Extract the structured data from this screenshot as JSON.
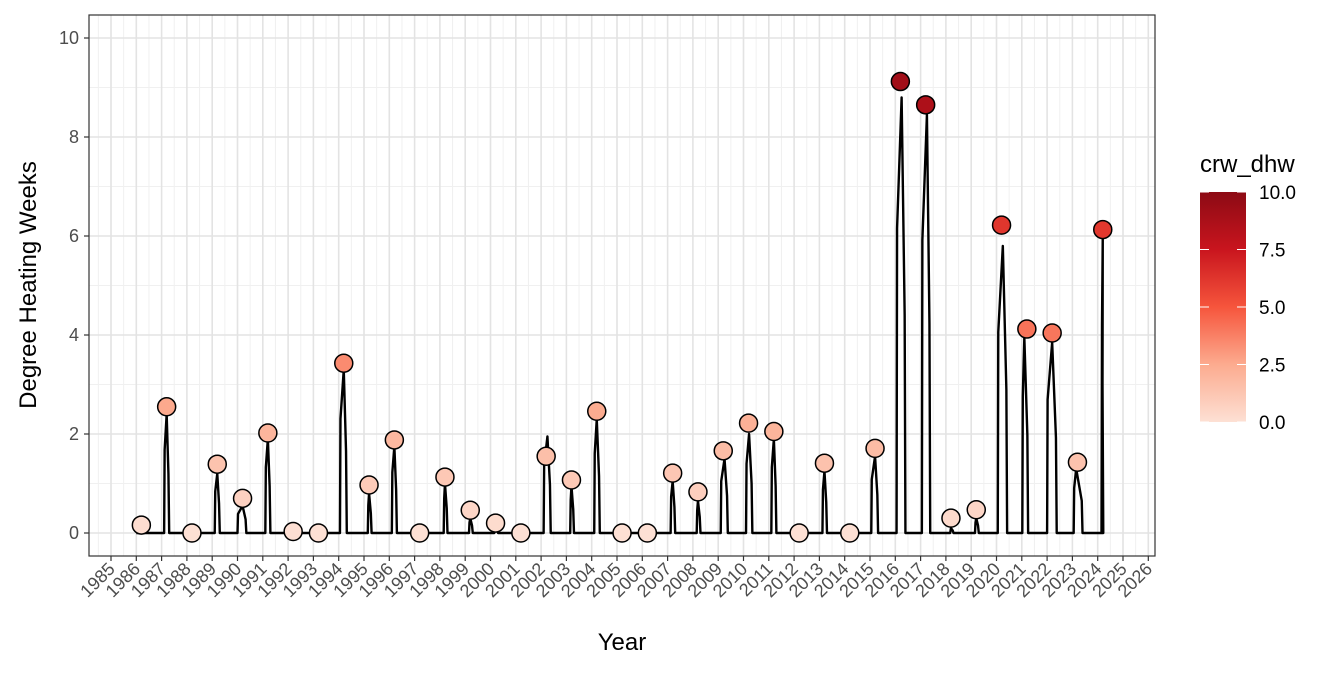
{
  "chart_data": {
    "type": "line",
    "title": "",
    "xlabel": "Year",
    "ylabel": "Degree Heating Weeks",
    "xlim": [
      1984.1,
      2026.2
    ],
    "ylim": [
      -0.45,
      10.4
    ],
    "grid": true,
    "x_ticks": [
      "1985",
      "1986",
      "1987",
      "1988",
      "1989",
      "1990",
      "1991",
      "1992",
      "1993",
      "1994",
      "1995",
      "1996",
      "1997",
      "1998",
      "1999",
      "2000",
      "2001",
      "2002",
      "2003",
      "2004",
      "2005",
      "2006",
      "2007",
      "2008",
      "2009",
      "2010",
      "2011",
      "2012",
      "2013",
      "2014",
      "2015",
      "2016",
      "2017",
      "2018",
      "2019",
      "2020",
      "2021",
      "2022",
      "2023",
      "2024",
      "2025",
      "2026"
    ],
    "y_ticks": [
      "0",
      "2",
      "4",
      "6",
      "8",
      "10"
    ],
    "points": {
      "name": "annual max crw_dhw",
      "x": [
        1986.2,
        1987.2,
        1988.2,
        1989.2,
        1990.2,
        1991.2,
        1992.2,
        1993.2,
        1994.2,
        1995.2,
        1996.2,
        1997.2,
        1998.2,
        1999.2,
        2000.2,
        2001.2,
        2002.2,
        2003.2,
        2004.2,
        2005.2,
        2006.2,
        2007.2,
        2008.2,
        2009.2,
        2010.2,
        2011.2,
        2012.2,
        2013.2,
        2014.2,
        2015.2,
        2016.2,
        2017.2,
        2018.2,
        2019.2,
        2020.2,
        2021.2,
        2022.2,
        2023.2,
        2024.2
      ],
      "y": [
        0.16,
        2.55,
        0.0,
        1.39,
        0.7,
        2.02,
        0.03,
        0.0,
        3.43,
        0.97,
        1.88,
        0.0,
        1.13,
        0.46,
        0.2,
        0.0,
        1.55,
        1.07,
        2.46,
        0.0,
        0.0,
        1.21,
        0.83,
        1.66,
        2.22,
        2.05,
        0.0,
        1.41,
        0.0,
        1.71,
        9.12,
        8.65,
        0.3,
        0.47,
        6.22,
        4.12,
        4.04,
        1.43,
        6.13
      ]
    },
    "line_spikes": {
      "name": "weekly crw_dhw",
      "note": "each spike: [start, peak_x, end, peak_value]",
      "values": [
        [
          1986.15,
          1986.2,
          1986.25,
          0.15
        ],
        [
          1987.1,
          1987.2,
          1987.3,
          2.4
        ],
        [
          1989.1,
          1989.2,
          1989.3,
          1.2
        ],
        [
          1990.0,
          1990.2,
          1990.35,
          0.55
        ],
        [
          1991.1,
          1991.2,
          1991.3,
          1.9
        ],
        [
          1994.05,
          1994.2,
          1994.32,
          3.3
        ],
        [
          1995.15,
          1995.2,
          1995.3,
          0.8
        ],
        [
          1996.1,
          1996.2,
          1996.3,
          1.75
        ],
        [
          1998.15,
          1998.2,
          1998.3,
          1.0
        ],
        [
          1999.15,
          1999.2,
          1999.3,
          0.3
        ],
        [
          2000.15,
          2000.2,
          2000.3,
          0.1
        ],
        [
          2002.1,
          2002.25,
          2002.38,
          1.95
        ],
        [
          2003.15,
          2003.2,
          2003.3,
          0.95
        ],
        [
          2004.1,
          2004.2,
          2004.32,
          2.3
        ],
        [
          2007.12,
          2007.2,
          2007.3,
          1.05
        ],
        [
          2008.15,
          2008.2,
          2008.3,
          0.65
        ],
        [
          2009.1,
          2009.25,
          2009.38,
          1.5
        ],
        [
          2010.1,
          2010.22,
          2010.35,
          2.0
        ],
        [
          2011.1,
          2011.2,
          2011.3,
          1.9
        ],
        [
          2013.12,
          2013.2,
          2013.3,
          1.25
        ],
        [
          2015.05,
          2015.2,
          2015.32,
          1.55
        ],
        [
          2016.05,
          2016.25,
          2016.4,
          8.8
        ],
        [
          2017.05,
          2017.25,
          2017.38,
          8.45
        ],
        [
          2018.17,
          2018.2,
          2018.3,
          0.1
        ],
        [
          2019.15,
          2019.2,
          2019.3,
          0.3
        ],
        [
          2020.05,
          2020.25,
          2020.42,
          5.8
        ],
        [
          2021.02,
          2021.1,
          2021.25,
          3.95
        ],
        [
          2022.0,
          2022.2,
          2022.38,
          3.85
        ],
        [
          2023.05,
          2023.15,
          2023.4,
          1.3
        ],
        [
          2024.15,
          2024.2,
          2024.22,
          6.0
        ]
      ]
    },
    "legend": {
      "title": "crw_dhw",
      "placement": "right",
      "labels": [
        "10.0",
        "7.5",
        "5.0",
        "2.5",
        "0.0"
      ],
      "range": [
        0,
        10
      ],
      "colors": [
        "#fde0d4",
        "#fcab8f",
        "#f6553c",
        "#c9151e",
        "#8c0a14"
      ]
    }
  }
}
